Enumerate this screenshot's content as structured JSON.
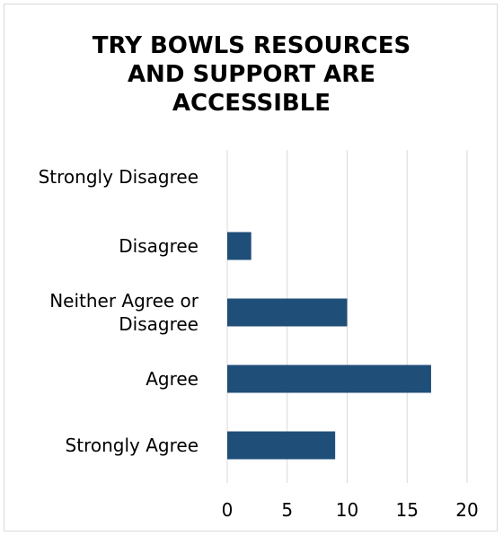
{
  "chart_data": {
    "type": "bar",
    "orientation": "horizontal",
    "title_lines": [
      "TRY BOWLS RESOURCES",
      "AND SUPPORT ARE",
      "ACCESSIBLE"
    ],
    "categories": [
      [
        "Strongly Disagree"
      ],
      [
        "Disagree"
      ],
      [
        "Neither Agree or",
        "Disagree"
      ],
      [
        "Agree"
      ],
      [
        "Strongly Agree"
      ]
    ],
    "values": [
      0,
      2,
      10,
      17,
      9
    ],
    "xlim": [
      0,
      20
    ],
    "xticks": [
      "0",
      "5",
      "10",
      "15",
      "20"
    ],
    "grid": true,
    "bar_color": "#1f4e79",
    "grid_color": "#d9d9d9"
  }
}
